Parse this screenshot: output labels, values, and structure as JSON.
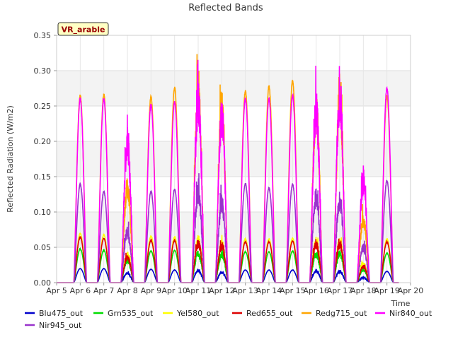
{
  "chart_data": {
    "type": "line",
    "title": "Reflected Bands",
    "xlabel": "Time",
    "ylabel": "Reflected Radiation (W/m2)",
    "badge": "VR_arable",
    "grid": true,
    "legend_position": "bottom",
    "xlim": [
      5,
      20
    ],
    "ylim": [
      0,
      0.35
    ],
    "x_ticks": [
      5,
      6,
      7,
      8,
      9,
      10,
      11,
      12,
      13,
      14,
      15,
      16,
      17,
      18,
      19,
      20
    ],
    "x_tick_labels": [
      "Apr 5",
      "Apr 6",
      "Apr 7",
      "Apr 8",
      "Apr 9",
      "Apr 10",
      "Apr 11",
      "Apr 12",
      "Apr 13",
      "Apr 14",
      "Apr 15",
      "Apr 16",
      "Apr 17",
      "Apr 18",
      "Apr 19",
      "Apr 20"
    ],
    "y_ticks": [
      0,
      0.05,
      0.1,
      0.15,
      0.2,
      0.25,
      0.3,
      0.35
    ],
    "y_tick_labels": [
      "0.00",
      "0.05",
      "0.10",
      "0.15",
      "0.20",
      "0.25",
      "0.30",
      "0.35"
    ],
    "day_centers": [
      6.0,
      7.0,
      8.0,
      9.0,
      10.0,
      11.0,
      12.0,
      13.0,
      14.0,
      15.0,
      16.0,
      17.0,
      18.0,
      19.0
    ],
    "series": [
      {
        "name": "Blu475_out",
        "color": "#0000cc",
        "daily_peak": [
          0.02,
          0.02,
          0.015,
          0.019,
          0.018,
          0.019,
          0.016,
          0.018,
          0.018,
          0.018,
          0.018,
          0.018,
          0.008,
          0.016
        ]
      },
      {
        "name": "Grn535_out",
        "color": "#00dd00",
        "daily_peak": [
          0.048,
          0.046,
          0.035,
          0.045,
          0.046,
          0.046,
          0.044,
          0.044,
          0.044,
          0.045,
          0.045,
          0.046,
          0.02,
          0.042
        ]
      },
      {
        "name": "Yel580_out",
        "color": "#ffff00",
        "daily_peak": [
          0.07,
          0.068,
          0.045,
          0.066,
          0.065,
          0.068,
          0.062,
          0.062,
          0.062,
          0.063,
          0.065,
          0.066,
          0.03,
          0.062
        ]
      },
      {
        "name": "Red655_out",
        "color": "#dd0000",
        "daily_peak": [
          0.065,
          0.063,
          0.04,
          0.06,
          0.06,
          0.062,
          0.058,
          0.058,
          0.058,
          0.059,
          0.06,
          0.06,
          0.025,
          0.058
        ]
      },
      {
        "name": "Redg715_out",
        "color": "#ffa500",
        "daily_peak": [
          0.267,
          0.268,
          0.15,
          0.265,
          0.278,
          0.298,
          0.275,
          0.273,
          0.28,
          0.288,
          0.272,
          0.287,
          0.1,
          0.265
        ]
      },
      {
        "name": "Nir840_out",
        "color": "#ff00ff",
        "daily_peak": [
          0.262,
          0.262,
          0.22,
          0.253,
          0.257,
          0.285,
          0.262,
          0.262,
          0.262,
          0.267,
          0.272,
          0.29,
          0.158,
          0.277
        ]
      },
      {
        "name": "Nir945_out",
        "color": "#9933cc",
        "daily_peak": [
          0.14,
          0.13,
          0.08,
          0.13,
          0.133,
          0.14,
          0.125,
          0.141,
          0.135,
          0.14,
          0.135,
          0.13,
          0.055,
          0.145
        ]
      }
    ]
  }
}
